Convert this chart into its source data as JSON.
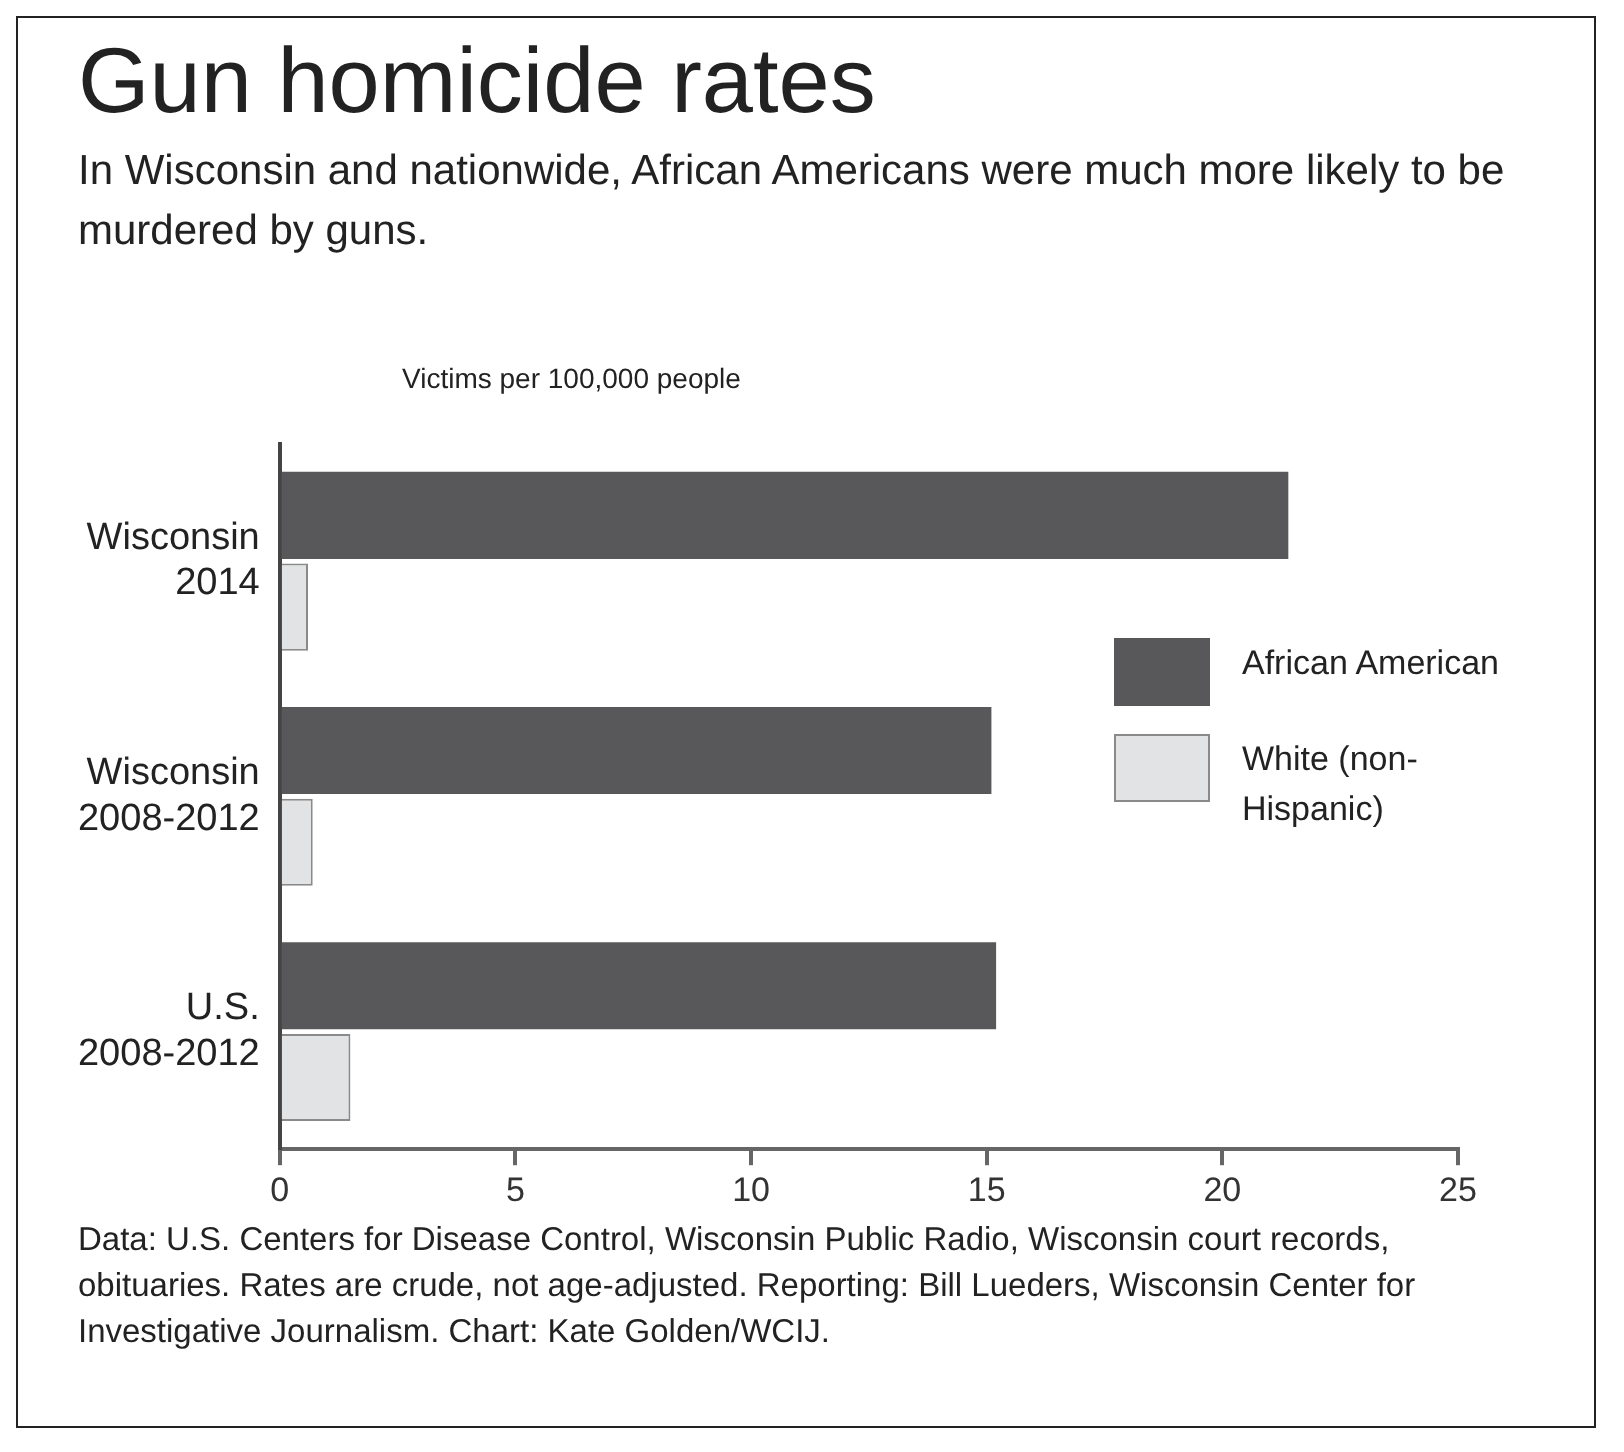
{
  "chart_data": {
    "type": "bar",
    "orientation": "horizontal",
    "title": "Gun homicide rates",
    "subtitle": "In Wisconsin and nationwide, African Americans were much more likely to be murdered by guns.",
    "xlabel": "Victims per 100,000 people",
    "categories": [
      "Wisconsin\n2014",
      "Wisconsin\n2008-2012",
      "U.S.\n2008-2012"
    ],
    "series": [
      {
        "name": "African American",
        "color": "#58585a",
        "values": [
          21.4,
          15.1,
          15.2
        ]
      },
      {
        "name": "White (non-Hispanic)",
        "color": "#e2e3e4",
        "values": [
          0.6,
          0.7,
          1.5
        ]
      }
    ],
    "xlim": [
      0,
      25
    ],
    "xticks": [
      0,
      5,
      10,
      15,
      20,
      25
    ],
    "grid": false,
    "legend": "right",
    "annotations": [
      "Data: U.S. Centers for Disease Control, Wisconsin Public Radio, Wisconsin court records, obituaries. Rates are crude, not age-adjusted. Reporting: Bill Lueders, Wisconsin Center for Investigative Journalism. Chart: Kate Golden/WCIJ."
    ]
  }
}
